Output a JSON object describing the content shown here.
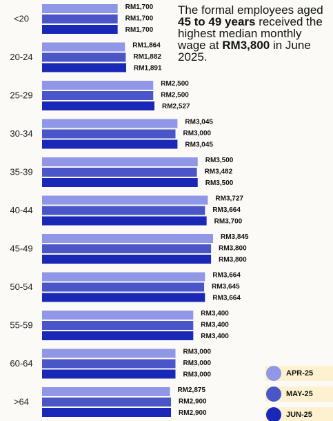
{
  "chart_data": {
    "type": "bar",
    "orientation": "horizontal",
    "annotation": [
      "The formal employees aged ",
      "45 to 49 years",
      " received the highest median monthly wage at ",
      "RM3,800",
      " in June 2025."
    ],
    "categories": [
      "<20",
      "20-24",
      "25-29",
      "30-34",
      "35-39",
      "40-44",
      "45-49",
      "50-54",
      "55-59",
      "60-64",
      ">64"
    ],
    "series": [
      {
        "name": "APR-25",
        "color": "#8f97e6",
        "values": [
          1700,
          1864,
          2500,
          3045,
          3500,
          3727,
          3845,
          3664,
          3400,
          3000,
          2875
        ],
        "value_labels": [
          "RM1,700",
          "RM1,864",
          "RM2,500",
          "RM3,045",
          "RM3,500",
          "RM3,727",
          "RM3,845",
          "RM3,664",
          "RM3,400",
          "RM3,000",
          "RM2,875"
        ]
      },
      {
        "name": "MAY-25",
        "color": "#4a55c8",
        "values": [
          1700,
          1882,
          2500,
          3000,
          3482,
          3664,
          3800,
          3645,
          3400,
          3000,
          2900
        ],
        "value_labels": [
          "RM1,700",
          "RM1,882",
          "RM2,500",
          "RM3,000",
          "RM3,482",
          "RM3,664",
          "RM3,800",
          "RM3,645",
          "RM3,400",
          "RM3,000",
          "RM2,900"
        ]
      },
      {
        "name": "JUN-25",
        "color": "#1a28b8",
        "values": [
          1700,
          1891,
          2527,
          3045,
          3500,
          3700,
          3800,
          3664,
          3400,
          3000,
          2900
        ],
        "value_labels": [
          "RM1,700",
          "RM1,891",
          "RM2,527",
          "RM3,045",
          "RM3,500",
          "RM3,700",
          "RM3,800",
          "RM3,664",
          "RM3,400",
          "RM3,000",
          "RM2,900"
        ]
      }
    ],
    "legend": "bottom-right"
  }
}
